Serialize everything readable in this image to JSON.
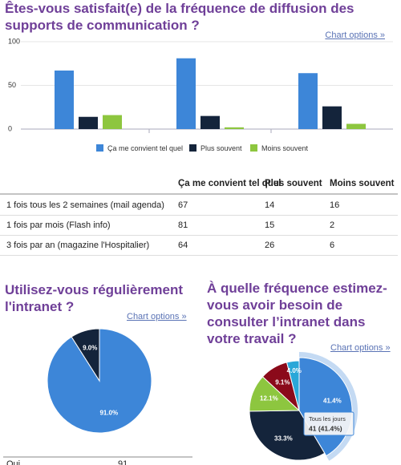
{
  "chart_data": [
    {
      "type": "bar",
      "title": "Êtes-vous satisfait(e) de la fréquence de diffusion des supports de communication ?",
      "options_link": "Chart options »",
      "categories": [
        null,
        null,
        null
      ],
      "series": [
        {
          "name": "Ça me convient tel quel",
          "color": "#3d86d8",
          "values": [
            67,
            81,
            64
          ]
        },
        {
          "name": "Plus souvent",
          "color": "#14243b",
          "values": [
            14,
            15,
            26
          ]
        },
        {
          "name": "Moins souvent",
          "color": "#8dc63f",
          "values": [
            16,
            2,
            6
          ]
        }
      ],
      "ylim": [
        0,
        100
      ],
      "yticks": [
        0,
        50,
        100
      ],
      "legend": "bottom"
    },
    {
      "type": "pie",
      "title": "Utilisez-vous régulièrement l'intranet ?",
      "options_link": "Chart options »",
      "values": [
        91.0,
        9.0
      ],
      "value_labels": [
        "91.0%",
        "9.0%"
      ],
      "colors": [
        "#3d86d8",
        "#14243b"
      ]
    },
    {
      "type": "pie",
      "title": "À quelle fréquence estimez-vous avoir besoin de consulter l’intranet dans votre travail ?",
      "options_link": "Chart options »",
      "categories": [
        "Tous les jours",
        null,
        null,
        null,
        null
      ],
      "values": [
        41.4,
        33.3,
        12.1,
        9.1,
        4.0
      ],
      "value_labels": [
        "41.4%",
        "33.3%",
        "12.1%",
        "9.1%",
        "4.0%"
      ],
      "colors": [
        "#3d86d8",
        "#14243b",
        "#8dc63f",
        "#8b0a1a",
        "#2aa7d8"
      ],
      "tooltip": "41 (41.4%)"
    }
  ],
  "table": {
    "header": [
      "Ça me convient tel quel",
      "Plus souvent",
      "Moins souvent"
    ],
    "rows": [
      [
        "1 fois tous les 2 semaines (mail agenda)",
        67,
        14,
        16
      ],
      [
        "1 fois par mois (Flash info)",
        81,
        15,
        2
      ],
      [
        "3 fois par an (magazine l'Hospitalier)",
        64,
        26,
        6
      ]
    ]
  },
  "summary_table": {
    "rows": [
      [
        "Oui",
        91
      ]
    ]
  }
}
